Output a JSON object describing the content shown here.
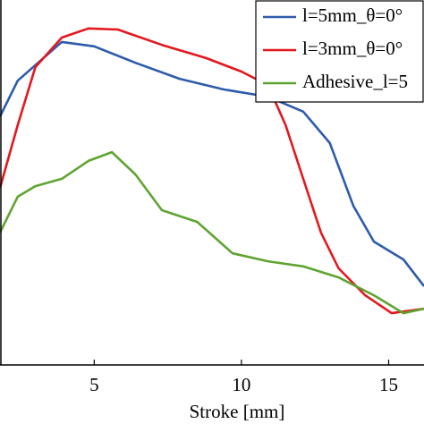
{
  "chart_data": {
    "type": "line",
    "xlabel": "Stroke [mm]",
    "xlim": [
      1.8,
      16.2
    ],
    "xticks": [
      5,
      10,
      15
    ],
    "ylim": [
      0,
      100
    ],
    "legend": "top-right",
    "series": [
      {
        "name": "l=5mm_θ=0°",
        "color": "#2e5bab",
        "x": [
          1.8,
          2.4,
          3.9,
          5.0,
          6.4,
          7.9,
          9.4,
          10.9,
          12.1,
          13.0,
          13.8,
          14.5,
          15.5,
          16.2
        ],
        "values": [
          68.1,
          77.9,
          88.5,
          87.3,
          82.8,
          78.4,
          75.5,
          73.5,
          69.4,
          60.8,
          43.6,
          33.8,
          28.9,
          21.6
        ]
      },
      {
        "name": "l=3mm_θ=0°",
        "color": "#e3181e",
        "x": [
          1.8,
          2.4,
          3.0,
          3.9,
          4.8,
          5.8,
          7.3,
          8.8,
          10.0,
          10.9,
          11.5,
          12.1,
          12.7,
          13.3,
          14.2,
          15.1,
          16.2
        ],
        "values": [
          48.5,
          65.7,
          81.6,
          89.7,
          92.2,
          91.9,
          87.7,
          84.1,
          80.4,
          76.7,
          65.7,
          51.0,
          36.3,
          26.5,
          19.1,
          14.2,
          15.4
        ]
      },
      {
        "name": "Adhesive_l=5",
        "color": "#5fa431",
        "x": [
          1.8,
          2.4,
          3.0,
          3.9,
          4.8,
          5.6,
          6.4,
          7.3,
          8.5,
          9.7,
          10.9,
          12.1,
          13.3,
          14.5,
          15.5,
          16.2
        ],
        "values": [
          36.3,
          46.1,
          49.0,
          51.0,
          55.9,
          58.3,
          52.2,
          42.4,
          39.2,
          30.6,
          28.4,
          27.0,
          24.0,
          19.1,
          14.2,
          15.4
        ]
      }
    ]
  }
}
